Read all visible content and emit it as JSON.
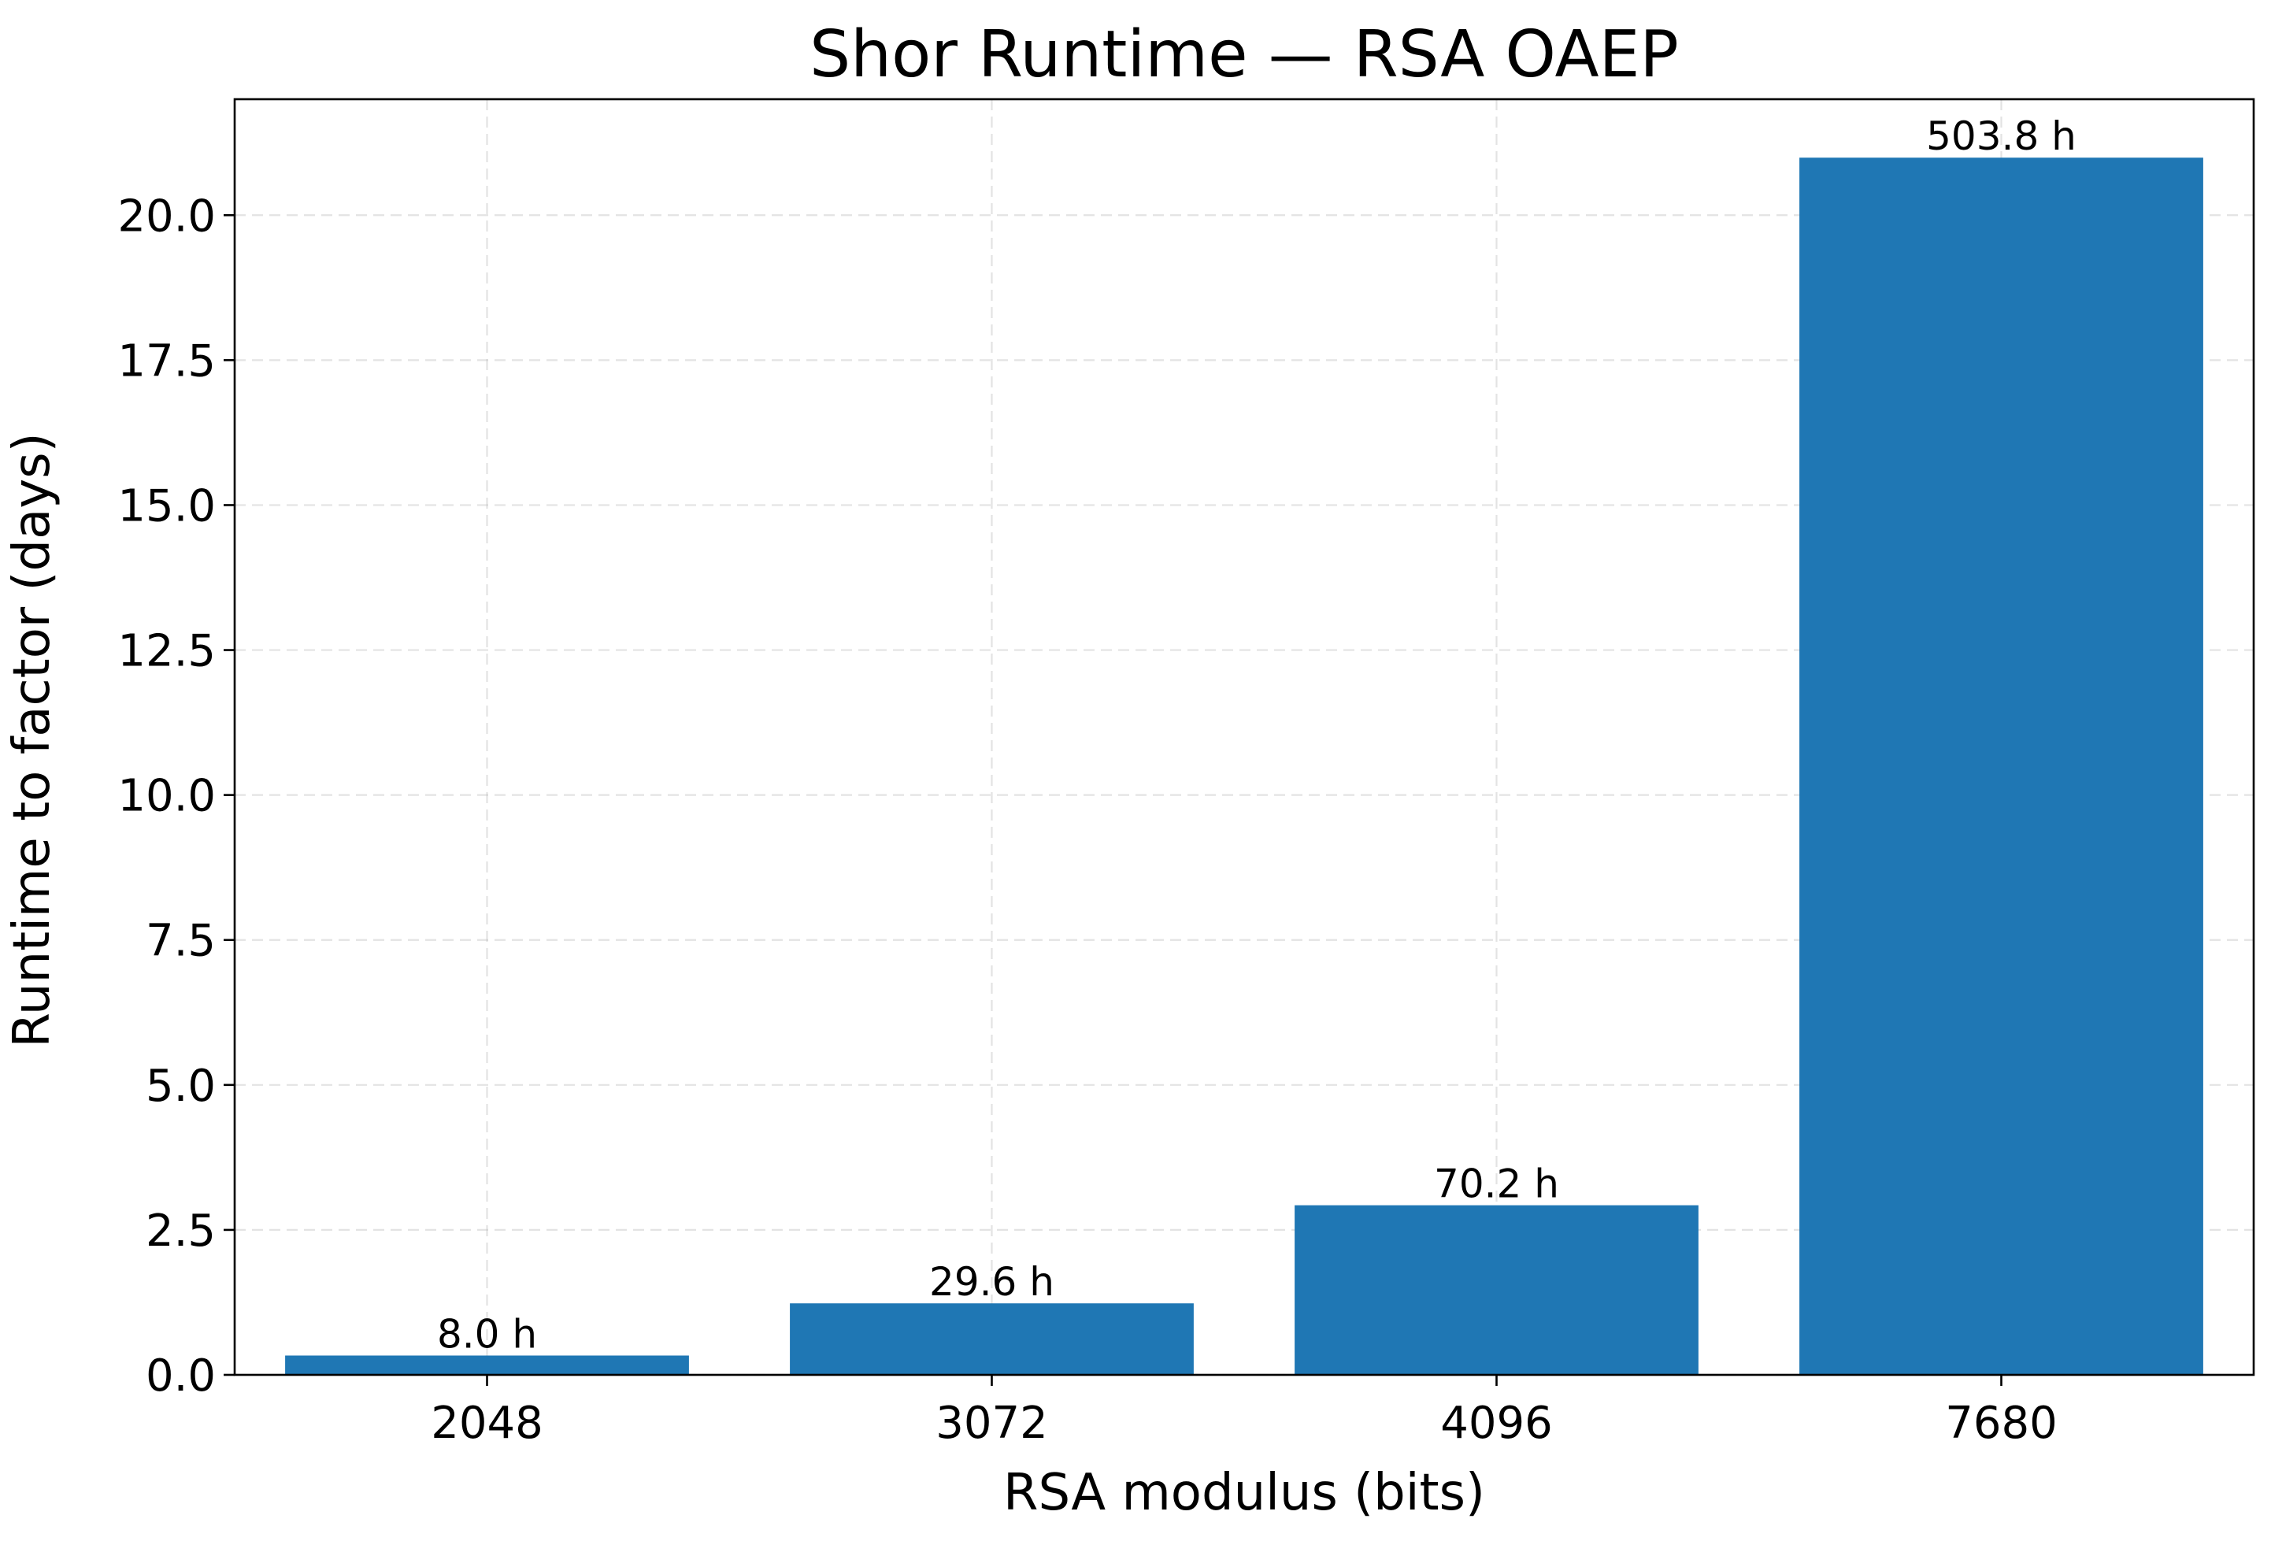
{
  "chart_data": {
    "type": "bar",
    "title": "Shor Runtime — RSA OAEP",
    "xlabel": "RSA modulus (bits)",
    "ylabel": "Runtime to factor (days)",
    "categories": [
      "2048",
      "3072",
      "4096",
      "7680"
    ],
    "values": [
      0.333,
      1.233,
      2.925,
      20.992
    ],
    "bar_labels": [
      "8.0 h",
      "29.6 h",
      "70.2 h",
      "503.8 h"
    ],
    "ylim": [
      0,
      22
    ],
    "yticks": [
      0.0,
      2.5,
      5.0,
      7.5,
      10.0,
      12.5,
      15.0,
      17.5,
      20.0
    ],
    "ytick_labels": [
      "0.0",
      "2.5",
      "5.0",
      "7.5",
      "10.0",
      "12.5",
      "15.0",
      "17.5",
      "20.0"
    ],
    "grid": true,
    "bar_color": "#1f77b4"
  }
}
